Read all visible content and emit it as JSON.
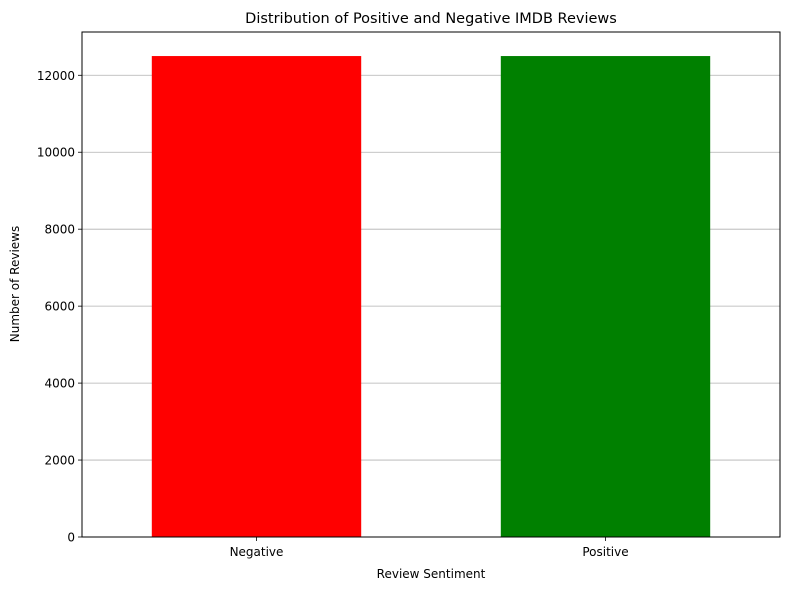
{
  "chart_data": {
    "type": "bar",
    "title": "Distribution of Positive and Negative IMDB Reviews",
    "xlabel": "Review Sentiment",
    "ylabel": "Number of Reviews",
    "categories": [
      "Negative",
      "Positive"
    ],
    "values": [
      12500,
      12500
    ],
    "colors": [
      "#ff0000",
      "#008000"
    ],
    "ylim": [
      0,
      13125
    ],
    "yticks": [
      0,
      2000,
      4000,
      6000,
      8000,
      10000,
      12000
    ],
    "ytick_labels": [
      "0",
      "2000",
      "4000",
      "6000",
      "8000",
      "10000",
      "12000"
    ],
    "grid": "y-axis horizontal gridlines",
    "grid_color": "#b0b0b0",
    "legend": "none"
  }
}
